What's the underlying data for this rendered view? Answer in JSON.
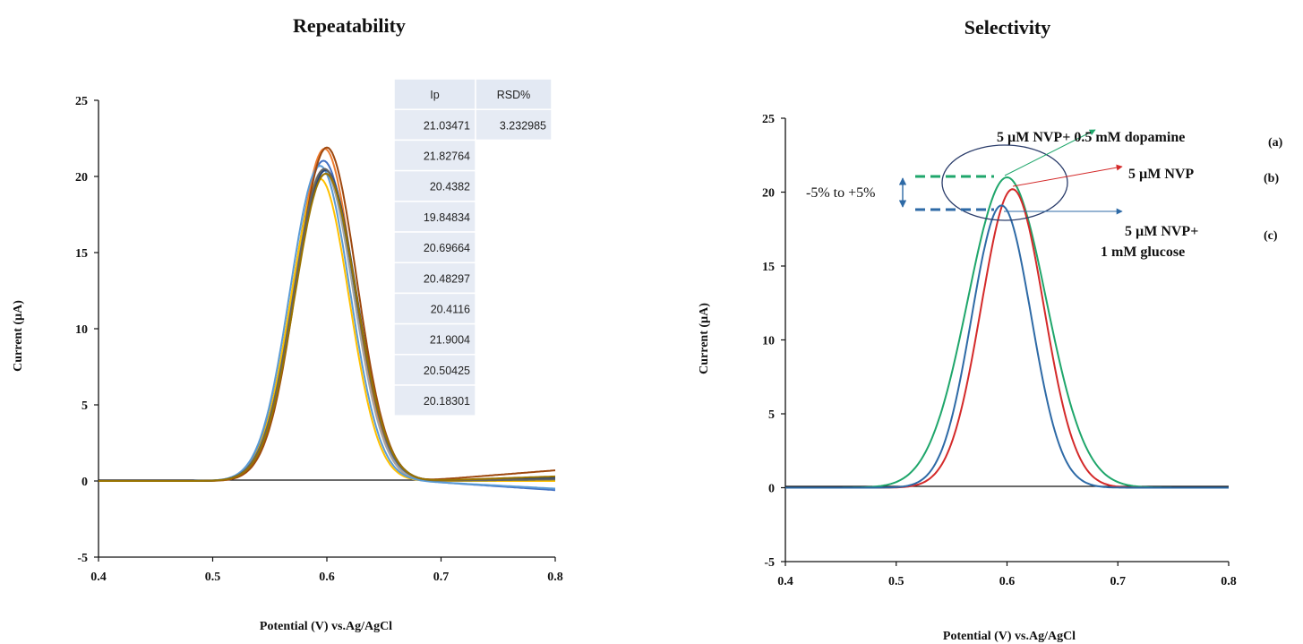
{
  "chart_data": [
    {
      "type": "line",
      "title": "Repeatability",
      "xlabel": "Potential (V) vs.Ag/AgCl",
      "ylabel": "Current (µA)",
      "xlim": [
        0.4,
        0.8
      ],
      "ylim": [
        -5,
        25
      ],
      "xticks": [
        "0.4",
        "0.5",
        "0.6",
        "0.7",
        "0.8"
      ],
      "yticks": [
        "-5",
        "0",
        "5",
        "10",
        "15",
        "20",
        "25"
      ],
      "grid": false,
      "series_colors": [
        "#4472c4",
        "#ed7d31",
        "#a5a5a5",
        "#ffc000",
        "#5b9bd5",
        "#70ad47",
        "#264478",
        "#9e480e",
        "#636363",
        "#997300"
      ],
      "series": [
        {
          "peak_x": 0.597,
          "peak_y": 21.03471,
          "width": 0.038,
          "end_x": 0.8,
          "end_y": -0.6
        },
        {
          "peak_x": 0.598,
          "peak_y": 21.82764,
          "width": 0.036,
          "end_x": 0.8,
          "end_y": 0.1
        },
        {
          "peak_x": 0.597,
          "peak_y": 20.4382,
          "width": 0.037,
          "end_x": 0.8,
          "end_y": 0.0
        },
        {
          "peak_x": 0.594,
          "peak_y": 19.84834,
          "width": 0.036,
          "end_x": 0.8,
          "end_y": 0.0
        },
        {
          "peak_x": 0.594,
          "peak_y": 20.69664,
          "width": 0.037,
          "end_x": 0.8,
          "end_y": -0.5
        },
        {
          "peak_x": 0.598,
          "peak_y": 20.48297,
          "width": 0.038,
          "end_x": 0.8,
          "end_y": 0.1
        },
        {
          "peak_x": 0.599,
          "peak_y": 20.4116,
          "width": 0.038,
          "end_x": 0.8,
          "end_y": 0.2
        },
        {
          "peak_x": 0.6,
          "peak_y": 21.9004,
          "width": 0.037,
          "end_x": 0.8,
          "end_y": 0.7
        },
        {
          "peak_x": 0.598,
          "peak_y": 20.50425,
          "width": 0.038,
          "end_x": 0.8,
          "end_y": 0.1
        },
        {
          "peak_x": 0.599,
          "peak_y": 20.18301,
          "width": 0.038,
          "end_x": 0.8,
          "end_y": 0.3
        }
      ],
      "table": {
        "headers": [
          "Ip",
          "RSD%"
        ],
        "rows": [
          [
            "21.03471",
            "3.232985"
          ],
          [
            "21.82764",
            ""
          ],
          [
            "20.4382",
            ""
          ],
          [
            "19.84834",
            ""
          ],
          [
            "20.69664",
            ""
          ],
          [
            "20.48297",
            ""
          ],
          [
            "20.4116",
            ""
          ],
          [
            "21.9004",
            ""
          ],
          [
            "20.50425",
            ""
          ],
          [
            "20.18301",
            ""
          ]
        ]
      }
    },
    {
      "type": "line",
      "title": "Selectivity",
      "xlabel": "Potential (V) vs.Ag/AgCl",
      "ylabel": "Current (µA)",
      "xlim": [
        0.4,
        0.8
      ],
      "ylim": [
        -5,
        25
      ],
      "xticks": [
        "0.4",
        "0.5",
        "0.6",
        "0.7",
        "0.8"
      ],
      "yticks": [
        "-5",
        "0",
        "5",
        "10",
        "15",
        "20",
        "25"
      ],
      "grid": false,
      "series": [
        {
          "name": "5 µM NVP+ 0.5 mM dopamine",
          "tag": "(a)",
          "color": "#1fa66b",
          "peak_x": 0.6,
          "peak_y": 21.0,
          "width": 0.05
        },
        {
          "name": "5 µM NVP",
          "tag": "(b)",
          "color": "#d42a2a",
          "peak_x": 0.605,
          "peak_y": 20.2,
          "width": 0.04
        },
        {
          "name": "5 µM NVP+",
          "name_line2": "1 mM glucose",
          "tag": "(c)",
          "color": "#2e6aa6",
          "peak_x": 0.595,
          "peak_y": 19.1,
          "width": 0.038
        }
      ],
      "range_annotation": "-5% to +5%"
    }
  ]
}
